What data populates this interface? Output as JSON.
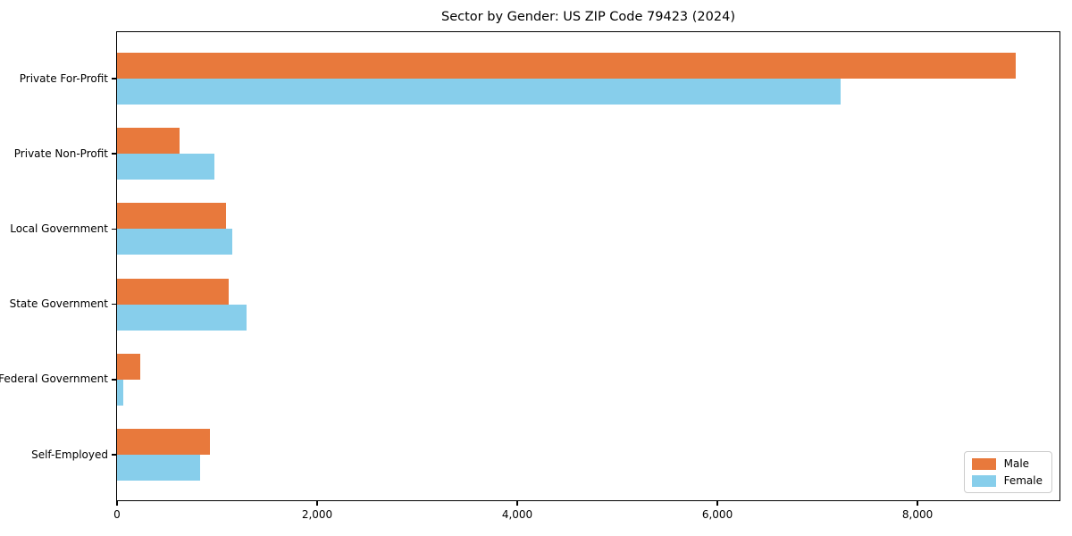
{
  "title": "Sector by Gender: US ZIP Code 79423 (2024)",
  "colors": {
    "male": "#e8793c",
    "female": "#87ceeb",
    "frame": "#000000",
    "text": "#000000",
    "legend_border": "#cccccc",
    "background": "#ffffff"
  },
  "chart_data": {
    "type": "bar",
    "orientation": "horizontal",
    "title": "Sector by Gender: US ZIP Code 79423 (2024)",
    "xlabel": "",
    "ylabel": "",
    "categories": [
      "Private For-Profit",
      "Private Non-Profit",
      "Local Government",
      "State Government",
      "Federal Government",
      "Self-Employed"
    ],
    "series": [
      {
        "name": "Male",
        "color": "#e8793c",
        "values": [
          8980,
          625,
          1090,
          1115,
          230,
          930
        ]
      },
      {
        "name": "Female",
        "color": "#87ceeb",
        "values": [
          7235,
          975,
          1150,
          1290,
          65,
          830
        ]
      }
    ],
    "xlim": [
      0,
      9437
    ],
    "xticks": [
      0,
      2000,
      4000,
      6000,
      8000
    ],
    "xtick_labels": [
      "0",
      "2,000",
      "4,000",
      "6,000",
      "8,000"
    ],
    "grid": false,
    "legend_position": "lower right"
  },
  "legend": {
    "items": [
      {
        "label": "Male"
      },
      {
        "label": "Female"
      }
    ]
  }
}
